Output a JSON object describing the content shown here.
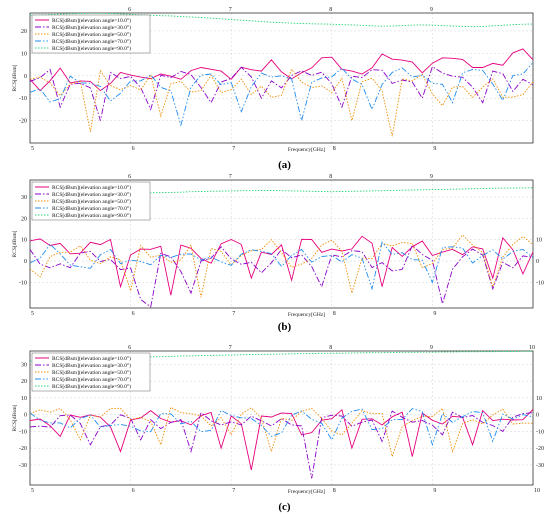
{
  "chart_data": [
    {
      "type": "line",
      "caption": "(a)",
      "xlabel": "Frequency[GHz]",
      "ylabel": "RCS[dBsm]",
      "xlim": [
        5,
        10
      ],
      "ylim": [
        -30,
        28
      ],
      "xticks": [
        5,
        6,
        7,
        8,
        9,
        10
      ],
      "xtick_labels": [
        "5",
        "6",
        "7",
        "8",
        "9",
        ""
      ],
      "yticks": [
        20,
        10,
        0,
        -10,
        -20
      ],
      "right_axis": false,
      "legend_position": "top-left",
      "grid": true,
      "series": [
        {
          "name": "RCS[dBsm](elevation angle=10.0°)",
          "color": "#e6007e",
          "dash": "",
          "base": 0,
          "trend": 8,
          "amp": 5,
          "dips": [
            [
              5.15,
              -13
            ],
            [
              5.45,
              -15
            ],
            [
              5.75,
              -17
            ],
            [
              6.05,
              -12
            ],
            [
              6.55,
              -10
            ],
            [
              7.25,
              -5
            ],
            [
              7.65,
              -6
            ],
            [
              8.25,
              -3
            ],
            [
              9.35,
              -2
            ],
            [
              9.65,
              3
            ]
          ],
          "y": []
        },
        {
          "name": "RCS[dBsm](elevation angle=30.0°)",
          "color": "#8a00c8",
          "dash": "6 2 1.5 2",
          "base": -2,
          "trend": 2,
          "amp": 5,
          "dips": [
            [
              5.3,
              -14
            ],
            [
              5.7,
              -20
            ],
            [
              6.2,
              -15
            ],
            [
              6.8,
              -12
            ],
            [
              7.3,
              -10
            ],
            [
              8.1,
              -14
            ],
            [
              8.9,
              -10
            ],
            [
              9.5,
              -12
            ],
            [
              9.8,
              -7
            ]
          ],
          "y": []
        },
        {
          "name": "RCS[dBsm](elevation angle=50.0°)",
          "color": "#f08c00",
          "dash": "1.5 1.5",
          "base": -3,
          "trend": 0,
          "amp": 6,
          "dips": [
            [
              5.6,
              -25
            ],
            [
              6.3,
              -18
            ],
            [
              6.95,
              -22
            ],
            [
              7.45,
              -24
            ],
            [
              8.2,
              -20
            ],
            [
              8.6,
              -27
            ],
            [
              9.05,
              -28
            ],
            [
              9.45,
              -24
            ],
            [
              9.75,
              -23
            ]
          ],
          "y": []
        },
        {
          "name": "RCS[dBsm](elevation angle=70.0°)",
          "color": "#1e8cf0",
          "dash": "6 2 1.5 2 1.5 2",
          "base": -5,
          "trend": 6,
          "amp": 5,
          "dips": [
            [
              5.25,
              -21
            ],
            [
              5.85,
              -17
            ],
            [
              6.5,
              -22
            ],
            [
              7.1,
              -16
            ],
            [
              7.7,
              -20
            ],
            [
              8.4,
              -15
            ],
            [
              9.2,
              -12
            ],
            [
              9.7,
              -11
            ]
          ],
          "y": []
        },
        {
          "name": "RCS[dBsm](elevation angle=90.0°)",
          "color": "#28d278",
          "dash": "1.5 1.5",
          "y": [
            27,
            27.1,
            27.3,
            27.5,
            27.7,
            27.8,
            27.9,
            27.9,
            27.8,
            27.6,
            27.4,
            27.2,
            27,
            26.8,
            26.7,
            26.4,
            26.2,
            26,
            25.7,
            25.4,
            25.1,
            24.8,
            24.5,
            24.2,
            23.9,
            23.7,
            23.5,
            23.3,
            23.2,
            23.1,
            23,
            22.8,
            22.7,
            22.5,
            22.3,
            22.1,
            22.2,
            22.4,
            22.6,
            22.7,
            22.6,
            22.4,
            22.2,
            22,
            21.9,
            22,
            22.3,
            22.5,
            22.8,
            23,
            23.1
          ]
        }
      ]
    },
    {
      "type": "line",
      "caption": "(b)",
      "xlabel": "Frequency[GHz]",
      "ylabel": "RCS[dBsm]",
      "xlim": [
        5,
        10
      ],
      "ylim": [
        -22,
        38
      ],
      "xticks": [
        5,
        6,
        7,
        8,
        9,
        10
      ],
      "xtick_labels": [
        "5",
        "6",
        "7",
        "8",
        "9",
        ""
      ],
      "yticks": [
        30,
        20,
        10,
        0,
        -10
      ],
      "right_axis": true,
      "right_yticks": [
        10,
        0,
        -10
      ],
      "legend_position": "top-left",
      "grid": true,
      "series": [
        {
          "name": "RCS[dBsm](elevation angle=10.0°)",
          "color": "#e6007e",
          "dash": "",
          "base": 7,
          "trend": 0,
          "amp": 5,
          "dips": [
            [
              5.9,
              -12
            ],
            [
              6.4,
              -16
            ],
            [
              6.75,
              -10
            ],
            [
              7.2,
              -8
            ],
            [
              7.6,
              -9
            ],
            [
              8.5,
              -12
            ],
            [
              9.05,
              -11
            ],
            [
              9.6,
              -8
            ],
            [
              9.9,
              -6
            ]
          ],
          "y": []
        },
        {
          "name": "RCS[dBsm](elevation angle=30.0°)",
          "color": "#8a00c8",
          "dash": "6 2 1.5 2",
          "base": 0,
          "trend": 2,
          "amp": 6,
          "dips": [
            [
              6.1,
              -18
            ],
            [
              6.2,
              -22
            ],
            [
              6.6,
              -15
            ],
            [
              7.35,
              -10
            ],
            [
              7.9,
              -12
            ],
            [
              8.65,
              -15
            ],
            [
              9.1,
              -20
            ],
            [
              9.6,
              -13
            ]
          ],
          "y": []
        },
        {
          "name": "RCS[dBsm](elevation angle=50.0°)",
          "color": "#f08c00",
          "dash": "1.5 1.5",
          "base": 2,
          "trend": 5,
          "amp": 6,
          "dips": [
            [
              5.05,
              -16
            ],
            [
              6.0,
              -14
            ],
            [
              6.7,
              -17
            ],
            [
              7.65,
              -13
            ],
            [
              8.2,
              -15
            ],
            [
              8.95,
              -13
            ],
            [
              9.6,
              -12
            ]
          ],
          "y": []
        },
        {
          "name": "RCS[dBsm](elevation angle=70.0°)",
          "color": "#1e8cf0",
          "dash": "6 2 1.5 2 1.5 2",
          "base": 2,
          "trend": 3,
          "amp": 6,
          "dips": [
            [
              5.45,
              -12
            ],
            [
              5.95,
              -14
            ],
            [
              6.55,
              -6
            ],
            [
              7.05,
              -9
            ],
            [
              7.85,
              -14
            ],
            [
              8.4,
              -13
            ],
            [
              9.0,
              -10
            ],
            [
              9.75,
              -10
            ]
          ],
          "y": []
        },
        {
          "name": "RCS[dBsm](elevation angle=90.0°)",
          "color": "#28d278",
          "dash": "1.5 1.5",
          "y": [
            30,
            30.2,
            30.5,
            30.7,
            30.9,
            31,
            31.1,
            31.2,
            31.3,
            31.5,
            31.7,
            31.9,
            32,
            32.1,
            32.2,
            32.3,
            32.5,
            32.6,
            32.7,
            32.8,
            32.9,
            33,
            33,
            33.1,
            33.1,
            33,
            32.9,
            32.8,
            32.7,
            32.6,
            32.5,
            32.6,
            32.7,
            32.8,
            32.9,
            33,
            33.1,
            33.2,
            33.3,
            33.4,
            33.5,
            33.6,
            33.7,
            33.8,
            33.9,
            34,
            34.1,
            34.2,
            34.2,
            34.3,
            34.4
          ]
        }
      ]
    },
    {
      "type": "line",
      "caption": "(c)",
      "xlabel": "Frequency[GHz]",
      "ylabel": "RCS[dBsm]",
      "xlim": [
        5,
        10
      ],
      "ylim": [
        -42,
        38
      ],
      "xticks": [
        5,
        6,
        7,
        8,
        9,
        10
      ],
      "xtick_labels": [
        "5",
        "6",
        "7",
        "8",
        "9",
        "10"
      ],
      "yticks": [
        30,
        20,
        10,
        0,
        -10,
        -20,
        -30
      ],
      "right_axis": true,
      "right_yticks": [
        10,
        0,
        -10,
        -20,
        -30
      ],
      "legend_position": "top-left",
      "grid": true,
      "series": [
        {
          "name": "RCS[dBsm](elevation angle=10.0°)",
          "color": "#e6007e",
          "dash": "",
          "base": -3,
          "trend": 2,
          "amp": 5,
          "dips": [
            [
              5.3,
              -13
            ],
            [
              5.9,
              -22
            ],
            [
              6.9,
              -20
            ],
            [
              7.2,
              -33
            ],
            [
              7.75,
              -28
            ],
            [
              8.2,
              -20
            ],
            [
              8.8,
              -25
            ],
            [
              9.4,
              -18
            ]
          ],
          "y": []
        },
        {
          "name": "RCS[dBsm](elevation angle=30.0°)",
          "color": "#8a00c8",
          "dash": "6 2 1.5 2",
          "base": -4,
          "trend": 2,
          "amp": 5,
          "dips": [
            [
              5.15,
              -12
            ],
            [
              5.6,
              -18
            ],
            [
              6.1,
              -15
            ],
            [
              6.6,
              -22
            ],
            [
              7.35,
              -15
            ],
            [
              7.8,
              -38
            ],
            [
              8.5,
              -16
            ],
            [
              9.1,
              -12
            ],
            [
              9.7,
              -10
            ]
          ],
          "y": []
        },
        {
          "name": "RCS[dBsm](elevation angle=50.0°)",
          "color": "#f08c00",
          "dash": "1.5 1.5",
          "base": 0,
          "trend": -2,
          "amp": 6,
          "dips": [
            [
              5.5,
              -15
            ],
            [
              6.3,
              -18
            ],
            [
              7.0,
              -12
            ],
            [
              7.4,
              -22
            ],
            [
              8.05,
              -30
            ],
            [
              8.6,
              -25
            ],
            [
              9.2,
              -22
            ],
            [
              9.85,
              -15
            ]
          ],
          "y": []
        },
        {
          "name": "RCS[dBsm](elevation angle=70.0°)",
          "color": "#1e8cf0",
          "dash": "6 2 1.5 2 1.5 2",
          "base": -4,
          "trend": 5,
          "amp": 5,
          "dips": [
            [
              5.75,
              -20
            ],
            [
              6.15,
              -28
            ],
            [
              6.75,
              -24
            ],
            [
              7.45,
              -40
            ],
            [
              8.0,
              -15
            ],
            [
              8.45,
              -25
            ],
            [
              9.0,
              -18
            ],
            [
              9.6,
              -16
            ]
          ],
          "y": []
        },
        {
          "name": "RCS[dBsm](elevation angle=90.0°)",
          "color": "#28d278",
          "dash": "1.5 1.5",
          "y": [
            32,
            32.2,
            32.5,
            32.8,
            33,
            33.2,
            33.4,
            33.6,
            33.8,
            34,
            34.1,
            34.3,
            34.5,
            34.6,
            34.8,
            35,
            35.1,
            35.3,
            35.4,
            35.5,
            35.6,
            35.8,
            35.9,
            36,
            36.1,
            36.2,
            36.3,
            36.4,
            36.5,
            36.6,
            36.6,
            36.7,
            36.8,
            36.9,
            37,
            37,
            37.1,
            37.2,
            37.2,
            37.3,
            37.3,
            37.4,
            37.4,
            37.5,
            37.5,
            37.6,
            37.6,
            37.7,
            37.7,
            37.8,
            37.8
          ]
        }
      ]
    }
  ]
}
